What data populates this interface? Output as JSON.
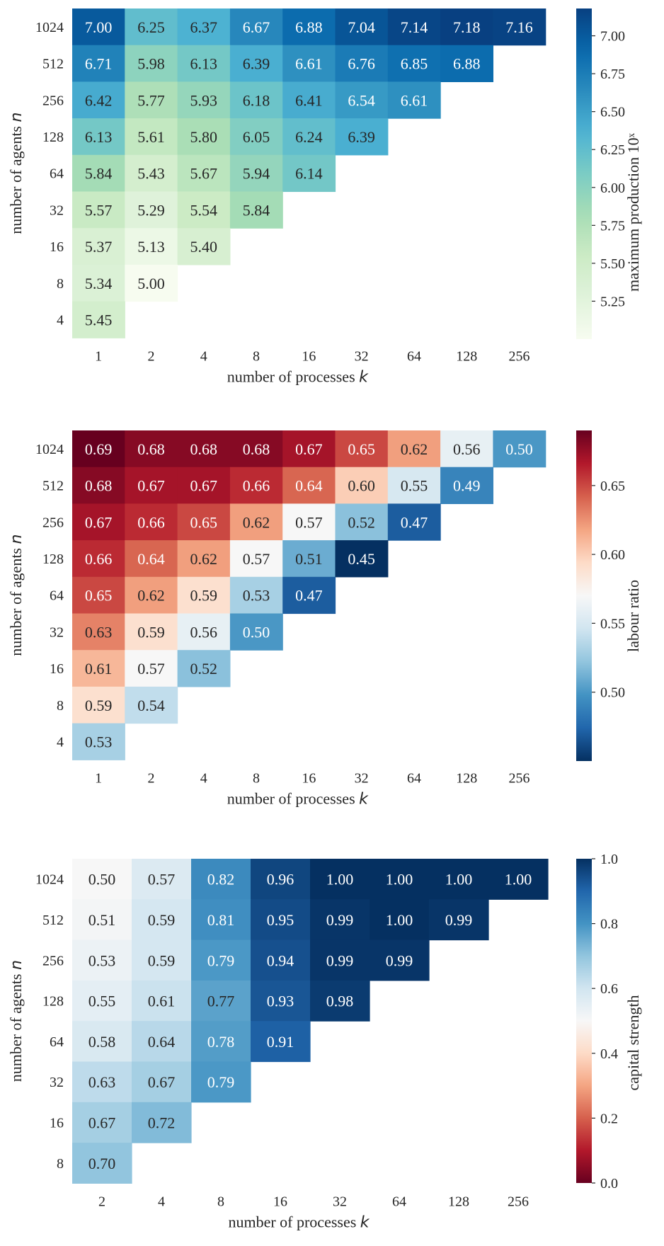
{
  "chart_data": [
    {
      "type": "heatmap",
      "xlabel": "number of processes k",
      "ylabel": "number of agents n",
      "x_categories": [
        "1",
        "2",
        "4",
        "8",
        "16",
        "32",
        "64",
        "128",
        "256"
      ],
      "y_categories": [
        "1024",
        "512",
        "256",
        "128",
        "64",
        "32",
        "16",
        "8",
        "4"
      ],
      "values": [
        [
          7.0,
          6.25,
          6.37,
          6.67,
          6.88,
          7.04,
          7.14,
          7.18,
          7.16
        ],
        [
          6.71,
          5.98,
          6.13,
          6.39,
          6.61,
          6.76,
          6.85,
          6.88,
          null
        ],
        [
          6.42,
          5.77,
          5.93,
          6.18,
          6.41,
          6.54,
          6.61,
          null,
          null
        ],
        [
          6.13,
          5.61,
          5.8,
          6.05,
          6.24,
          6.39,
          null,
          null,
          null
        ],
        [
          5.84,
          5.43,
          5.67,
          5.94,
          6.14,
          null,
          null,
          null,
          null
        ],
        [
          5.57,
          5.29,
          5.54,
          5.84,
          null,
          null,
          null,
          null,
          null
        ],
        [
          5.37,
          5.13,
          5.4,
          null,
          null,
          null,
          null,
          null,
          null
        ],
        [
          5.34,
          5.0,
          null,
          null,
          null,
          null,
          null,
          null,
          null
        ],
        [
          5.45,
          null,
          null,
          null,
          null,
          null,
          null,
          null,
          null
        ]
      ],
      "colorbar": {
        "label": "maximum production 10ˣ",
        "ticks": [
          "5.25",
          "5.50",
          "5.75",
          "6.00",
          "6.25",
          "6.50",
          "6.75",
          "7.00"
        ],
        "range": [
          5.0,
          7.18
        ],
        "colormap": "GnBu"
      }
    },
    {
      "type": "heatmap",
      "xlabel": "number of processes k",
      "ylabel": "number of agents n",
      "x_categories": [
        "1",
        "2",
        "4",
        "8",
        "16",
        "32",
        "64",
        "128",
        "256"
      ],
      "y_categories": [
        "1024",
        "512",
        "256",
        "128",
        "64",
        "32",
        "16",
        "8",
        "4"
      ],
      "values": [
        [
          0.69,
          0.68,
          0.68,
          0.68,
          0.67,
          0.65,
          0.62,
          0.56,
          0.5
        ],
        [
          0.68,
          0.67,
          0.67,
          0.66,
          0.64,
          0.6,
          0.55,
          0.49,
          null
        ],
        [
          0.67,
          0.66,
          0.65,
          0.62,
          0.57,
          0.52,
          0.47,
          null,
          null
        ],
        [
          0.66,
          0.64,
          0.62,
          0.57,
          0.51,
          0.45,
          null,
          null,
          null
        ],
        [
          0.65,
          0.62,
          0.59,
          0.53,
          0.47,
          null,
          null,
          null,
          null
        ],
        [
          0.63,
          0.59,
          0.56,
          0.5,
          null,
          null,
          null,
          null,
          null
        ],
        [
          0.61,
          0.57,
          0.52,
          null,
          null,
          null,
          null,
          null,
          null
        ],
        [
          0.59,
          0.54,
          null,
          null,
          null,
          null,
          null,
          null,
          null
        ],
        [
          0.53,
          null,
          null,
          null,
          null,
          null,
          null,
          null,
          null
        ]
      ],
      "colorbar": {
        "label": "labour ratio",
        "ticks": [
          "0.50",
          "0.55",
          "0.60",
          "0.65"
        ],
        "range": [
          0.45,
          0.69
        ],
        "colormap": "RdBu_r"
      }
    },
    {
      "type": "heatmap",
      "xlabel": "number of processes k",
      "ylabel": "number of agents n",
      "x_categories": [
        "2",
        "4",
        "8",
        "16",
        "32",
        "64",
        "128",
        "256"
      ],
      "y_categories": [
        "1024",
        "512",
        "256",
        "128",
        "64",
        "32",
        "16",
        "8"
      ],
      "values": [
        [
          0.5,
          0.57,
          0.82,
          0.96,
          1.0,
          1.0,
          1.0,
          1.0
        ],
        [
          0.51,
          0.59,
          0.81,
          0.95,
          0.99,
          1.0,
          0.99,
          null
        ],
        [
          0.53,
          0.59,
          0.79,
          0.94,
          0.99,
          0.99,
          null,
          null
        ],
        [
          0.55,
          0.61,
          0.77,
          0.93,
          0.98,
          null,
          null,
          null
        ],
        [
          0.58,
          0.64,
          0.78,
          0.91,
          null,
          null,
          null,
          null
        ],
        [
          0.63,
          0.67,
          0.79,
          null,
          null,
          null,
          null,
          null
        ],
        [
          0.67,
          0.72,
          null,
          null,
          null,
          null,
          null,
          null
        ],
        [
          0.7,
          null,
          null,
          null,
          null,
          null,
          null,
          null
        ]
      ],
      "colorbar": {
        "label": "capital strength",
        "ticks": [
          "0.0",
          "0.2",
          "0.4",
          "0.6",
          "0.8",
          "1.0"
        ],
        "range": [
          0.0,
          1.0
        ],
        "colormap": "RdBu"
      }
    }
  ]
}
